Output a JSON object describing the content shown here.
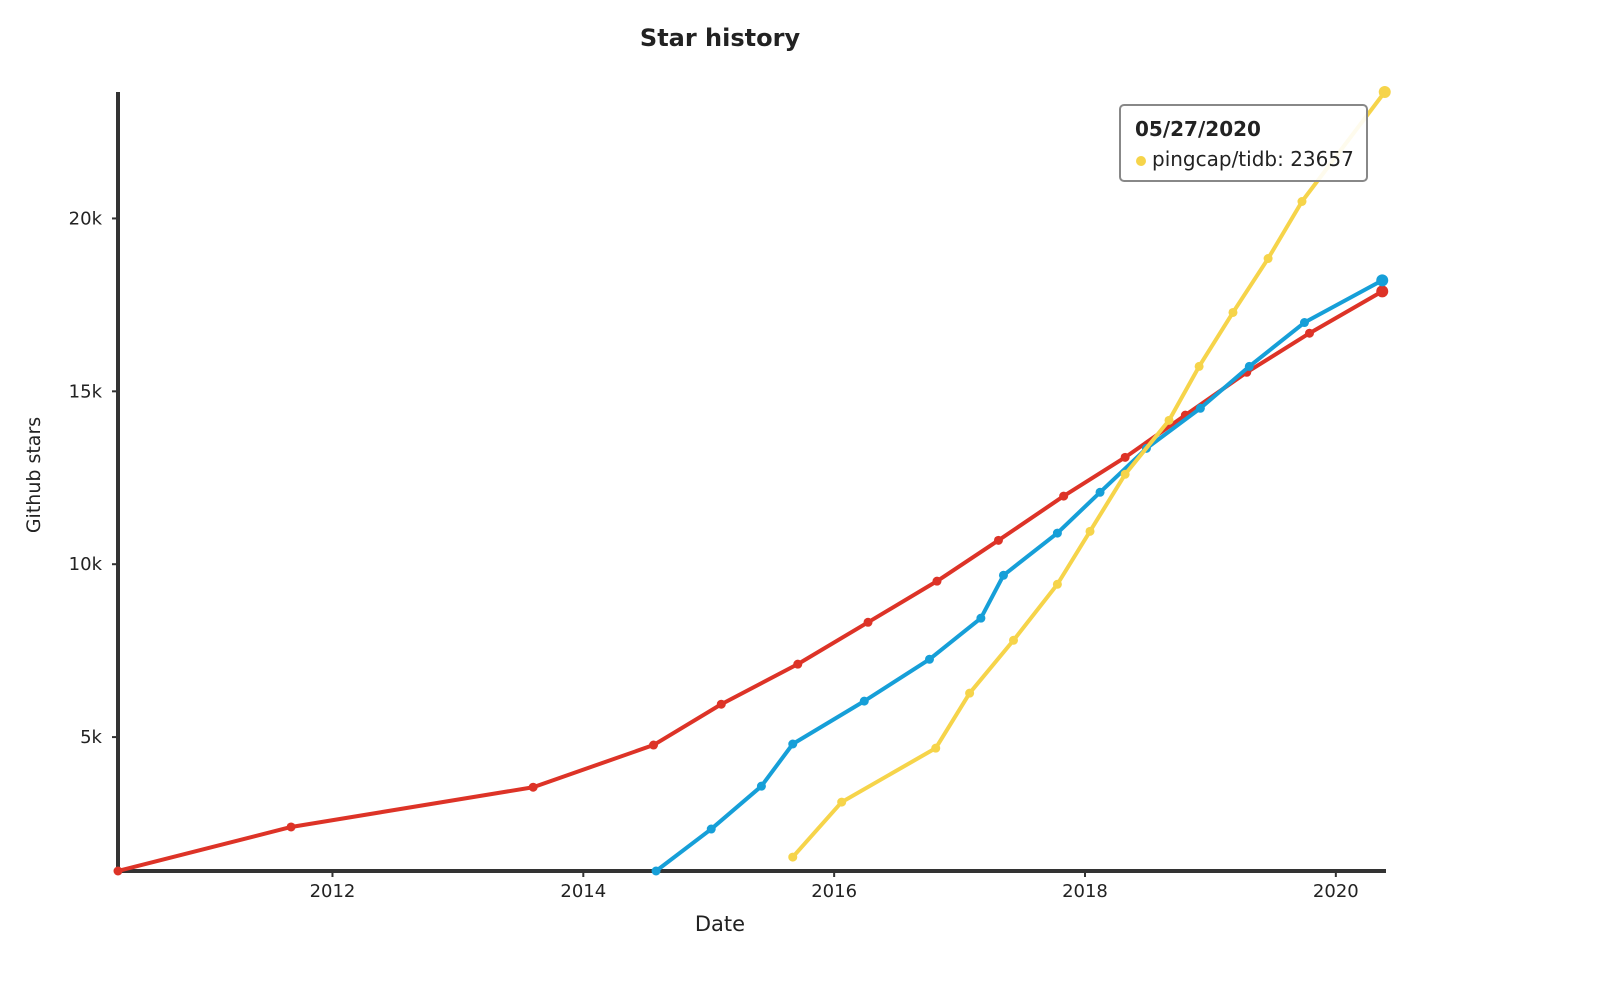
{
  "chart_data": {
    "type": "line",
    "title": "Star history",
    "x_label": "Date",
    "y_label": "Github stars",
    "xlim": [
      2010.29,
      2020.4
    ],
    "xticks": [
      2012,
      2014,
      2016,
      2018,
      2020
    ],
    "ylim": [
      1127,
      23657
    ],
    "yticks": [
      {
        "value": 5000,
        "label": "5k"
      },
      {
        "value": 10000,
        "label": "10k"
      },
      {
        "value": 15000,
        "label": "15k"
      },
      {
        "value": 20000,
        "label": "20k"
      }
    ],
    "series": [
      {
        "color": "#dd3327",
        "x": [
          2010.29,
          2011.67,
          2013.6,
          2014.56,
          2015.1,
          2015.71,
          2016.27,
          2016.82,
          2017.31,
          2017.83,
          2018.32,
          2018.8,
          2019.29,
          2019.79,
          2020.37
        ],
        "values": [
          1127,
          2400,
          3550,
          4770,
          5950,
          7110,
          8320,
          9510,
          10690,
          11970,
          13090,
          14310,
          15550,
          16680,
          17890
        ]
      },
      {
        "color": "#169fd8",
        "x": [
          2014.58,
          2015.02,
          2015.42,
          2015.67,
          2016.24,
          2016.76,
          2017.17,
          2017.35,
          2017.78,
          2018.12,
          2018.49,
          2018.92,
          2019.31,
          2019.75,
          2020.37
        ],
        "values": [
          1127,
          2340,
          3580,
          4800,
          6040,
          7250,
          8440,
          9680,
          10900,
          12080,
          13350,
          14510,
          15720,
          16990,
          18210
        ]
      },
      {
        "name": "pingcap/tidb",
        "color": "#f6d44a",
        "x": [
          2015.67,
          2016.06,
          2016.81,
          2017.08,
          2017.43,
          2017.78,
          2018.04,
          2018.32,
          2018.67,
          2018.91,
          2019.18,
          2019.46,
          2019.73,
          2020.39
        ],
        "values": [
          1530,
          3120,
          4680,
          6270,
          7800,
          9420,
          10950,
          12600,
          14160,
          15720,
          17280,
          18840,
          20490,
          23657
        ]
      }
    ],
    "tooltip": {
      "title": "05/27/2020",
      "text": "pingcap/tidb: 23657",
      "series": 2
    }
  }
}
